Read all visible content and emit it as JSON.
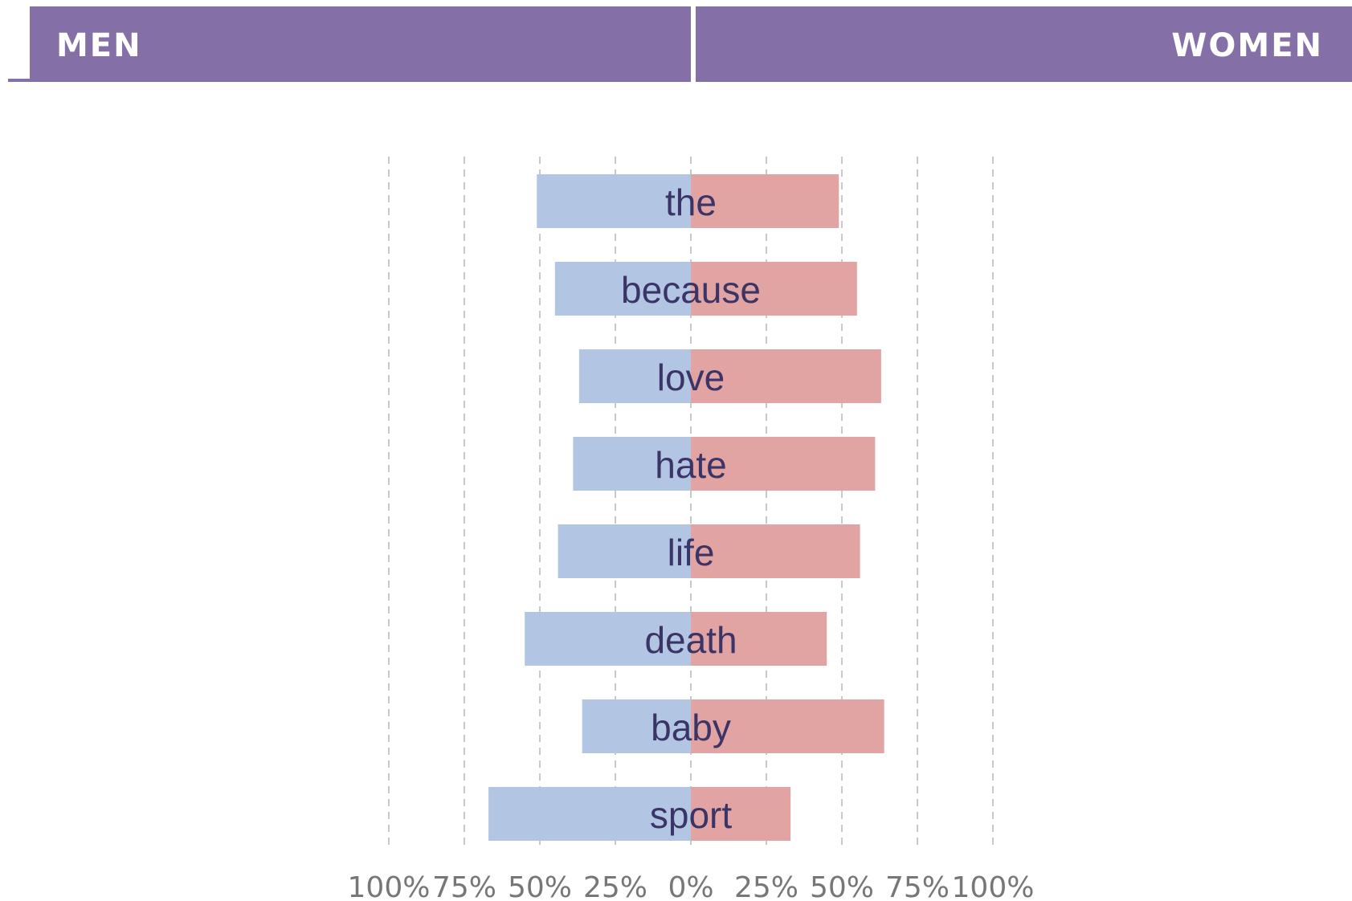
{
  "header": {
    "left_label": "MEN",
    "right_label": "WOMEN",
    "color": "#846fa6"
  },
  "chart_data": {
    "type": "bar",
    "orientation": "horizontal-diverging",
    "categories": [
      "the",
      "because",
      "love",
      "hate",
      "life",
      "death",
      "baby",
      "sport"
    ],
    "series": [
      {
        "name": "MEN",
        "color": "#b2c6e4",
        "values": [
          51,
          45,
          37,
          39,
          44,
          55,
          36,
          67
        ]
      },
      {
        "name": "WOMEN",
        "color": "#e2a3a3",
        "values": [
          49,
          55,
          63,
          61,
          56,
          45,
          64,
          33
        ]
      }
    ],
    "xlim": [
      -100,
      100
    ],
    "tick_labels": [
      "100%",
      "75%",
      "50%",
      "25%",
      "0%",
      "25%",
      "50%",
      "75%",
      "100%"
    ],
    "grid": true,
    "grid_style": "dashed-vertical",
    "label_color": "#3b3466",
    "tick_color": "#777777",
    "grid_color": "#c8c8c8"
  }
}
